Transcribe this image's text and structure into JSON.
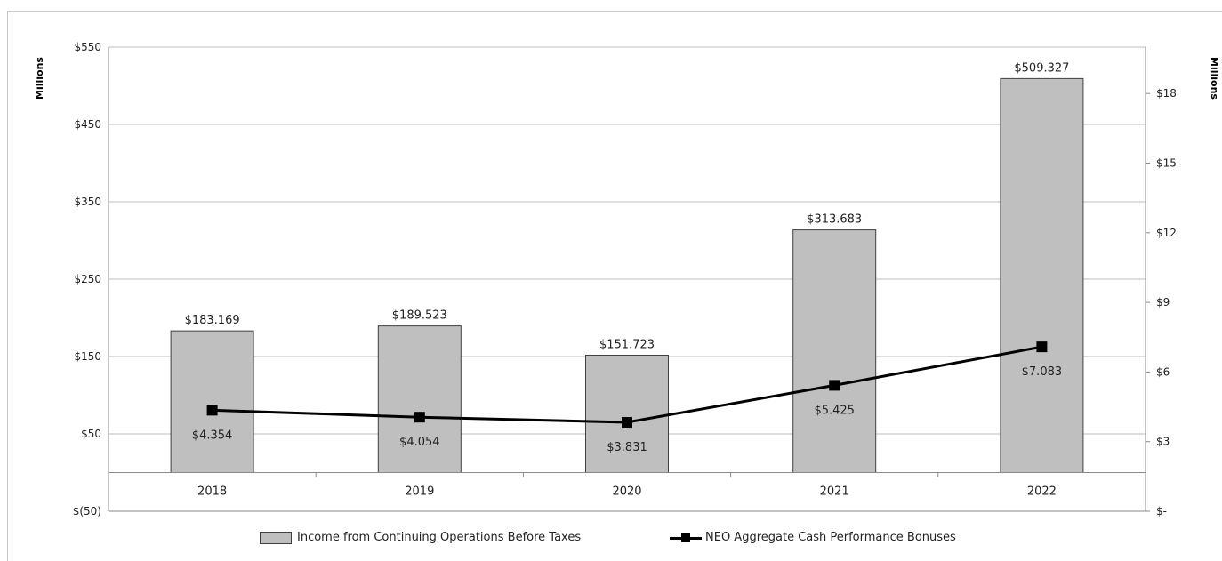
{
  "chart_data": {
    "type": "bar",
    "categories": [
      "2018",
      "2019",
      "2020",
      "2021",
      "2022"
    ],
    "series": [
      {
        "name": "Income from Continuing Operations Before Taxes",
        "type": "bar",
        "axis": "left",
        "values": [
          183.169,
          189.523,
          151.723,
          313.683,
          509.327
        ],
        "labels": [
          "$183.169",
          "$189.523",
          "$151.723",
          "$313.683",
          "$509.327"
        ],
        "color": "#bfbfbf"
      },
      {
        "name": "NEO Aggregate Cash Performance Bonuses",
        "type": "line",
        "axis": "right",
        "values": [
          4.354,
          4.054,
          3.831,
          5.425,
          7.083
        ],
        "labels": [
          "$4.354",
          "$4.054",
          "$3.831",
          "$5.425",
          "$7.083"
        ],
        "color": "#000000"
      }
    ],
    "left_axis": {
      "label": "Millions",
      "ylim": [
        -50,
        550
      ],
      "ticks": [
        -50,
        50,
        150,
        250,
        350,
        450,
        550
      ],
      "tick_labels": [
        "$(50)",
        "$50",
        "$150",
        "$250",
        "$350",
        "$450",
        "$550"
      ]
    },
    "right_axis": {
      "label": "Millions",
      "ylim": [
        0,
        20
      ],
      "ticks": [
        0,
        3,
        6,
        9,
        12,
        15,
        18
      ],
      "tick_labels": [
        "$-",
        "$3",
        "$6",
        "$9",
        "$12",
        "$15",
        "$18"
      ]
    },
    "grid": true,
    "legend_position": "bottom"
  }
}
